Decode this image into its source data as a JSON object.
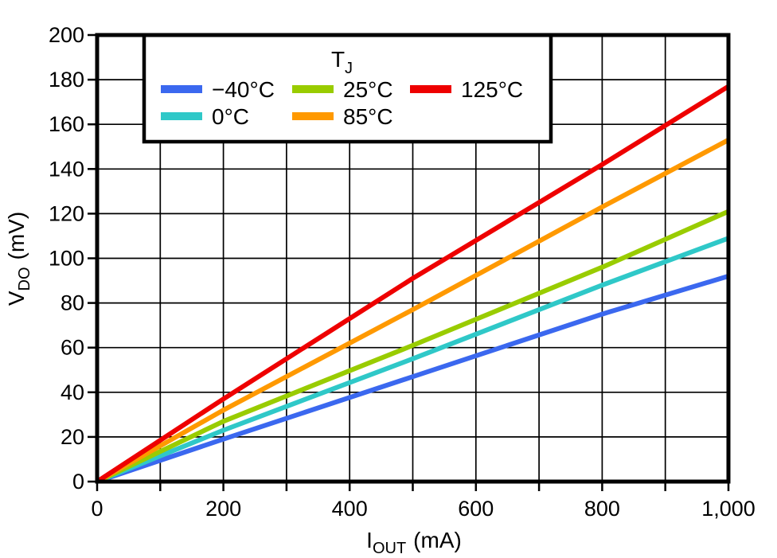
{
  "figure": {
    "background": "#FFFFFF",
    "axis_color": "#000000"
  },
  "chart_data": {
    "type": "line",
    "title": "",
    "xlabel": {
      "main": "I",
      "sub": "OUT",
      "unit": "(mA)"
    },
    "ylabel": {
      "main": "V",
      "sub": "DO",
      "unit": "(mV)"
    },
    "xlim": [
      0,
      1000
    ],
    "ylim": [
      0,
      200
    ],
    "grid": "on",
    "x_minor_step": 100,
    "x_tick_values": [
      0,
      200,
      400,
      600,
      800,
      1000
    ],
    "x_tick_labels": [
      "0",
      "200",
      "400",
      "600",
      "800",
      "1,000"
    ],
    "y_tick_values": [
      0,
      20,
      40,
      60,
      80,
      100,
      120,
      140,
      160,
      180,
      200
    ],
    "y_tick_labels": [
      "0",
      "20",
      "40",
      "60",
      "80",
      "100",
      "120",
      "140",
      "160",
      "180",
      "200"
    ],
    "legend": {
      "title": {
        "main": "T",
        "sub": "J"
      },
      "position": "top-left-inside",
      "rows": [
        [
          "−40°C",
          "25°C",
          "125°C"
        ],
        [
          "0°C",
          "85°C"
        ]
      ]
    },
    "x_samples": [
      0,
      200,
      500,
      800,
      1000
    ],
    "series": [
      {
        "name": "−40°C",
        "color": "#3B68EF",
        "values": [
          0,
          19,
          47,
          75,
          92
        ]
      },
      {
        "name": "0°C",
        "color": "#2FC8C8",
        "values": [
          0,
          23,
          55,
          88,
          109
        ]
      },
      {
        "name": "25°C",
        "color": "#99CC00",
        "values": [
          0,
          27,
          61,
          96,
          121
        ]
      },
      {
        "name": "85°C",
        "color": "#FF9900",
        "values": [
          0,
          32,
          77,
          123,
          153
        ]
      },
      {
        "name": "125°C",
        "color": "#EE0000",
        "values": [
          0,
          37,
          91,
          142,
          177
        ]
      }
    ]
  }
}
